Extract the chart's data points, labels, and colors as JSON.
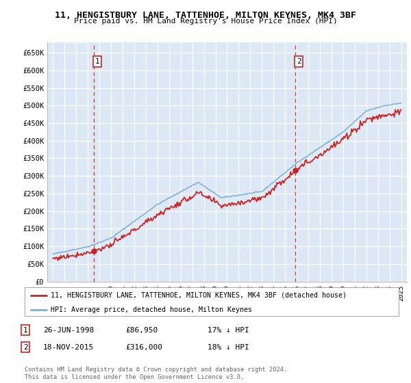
{
  "title": "11, HENGISTBURY LANE, TATTENHOE, MILTON KEYNES, MK4 3BF",
  "subtitle": "Price paid vs. HM Land Registry's House Price Index (HPI)",
  "ylim": [
    0,
    680000
  ],
  "yticks": [
    0,
    50000,
    100000,
    150000,
    200000,
    250000,
    300000,
    350000,
    400000,
    450000,
    500000,
    550000,
    600000,
    650000
  ],
  "ytick_labels": [
    "£0",
    "£50K",
    "£100K",
    "£150K",
    "£200K",
    "£250K",
    "£300K",
    "£350K",
    "£400K",
    "£450K",
    "£500K",
    "£550K",
    "£600K",
    "£650K"
  ],
  "plot_bg_color": "#dce8f5",
  "grid_color": "#ffffff",
  "hpi_line_color": "#7aafd4",
  "price_line_color": "#cc2222",
  "vline_color": "#cc4444",
  "sale1_date": 1998.49,
  "sale1_price": 86950,
  "sale2_date": 2015.89,
  "sale2_price": 316000,
  "legend_line1": "11, HENGISTBURY LANE, TATTENHOE, MILTON KEYNES, MK4 3BF (detached house)",
  "legend_line2": "HPI: Average price, detached house, Milton Keynes",
  "ann1_date": "26-JUN-1998",
  "ann1_price": "£86,950",
  "ann1_pct": "17% ↓ HPI",
  "ann2_date": "18-NOV-2015",
  "ann2_price": "£316,000",
  "ann2_pct": "18% ↓ HPI",
  "footer": "Contains HM Land Registry data © Crown copyright and database right 2024.\nThis data is licensed under the Open Government Licence v3.0."
}
